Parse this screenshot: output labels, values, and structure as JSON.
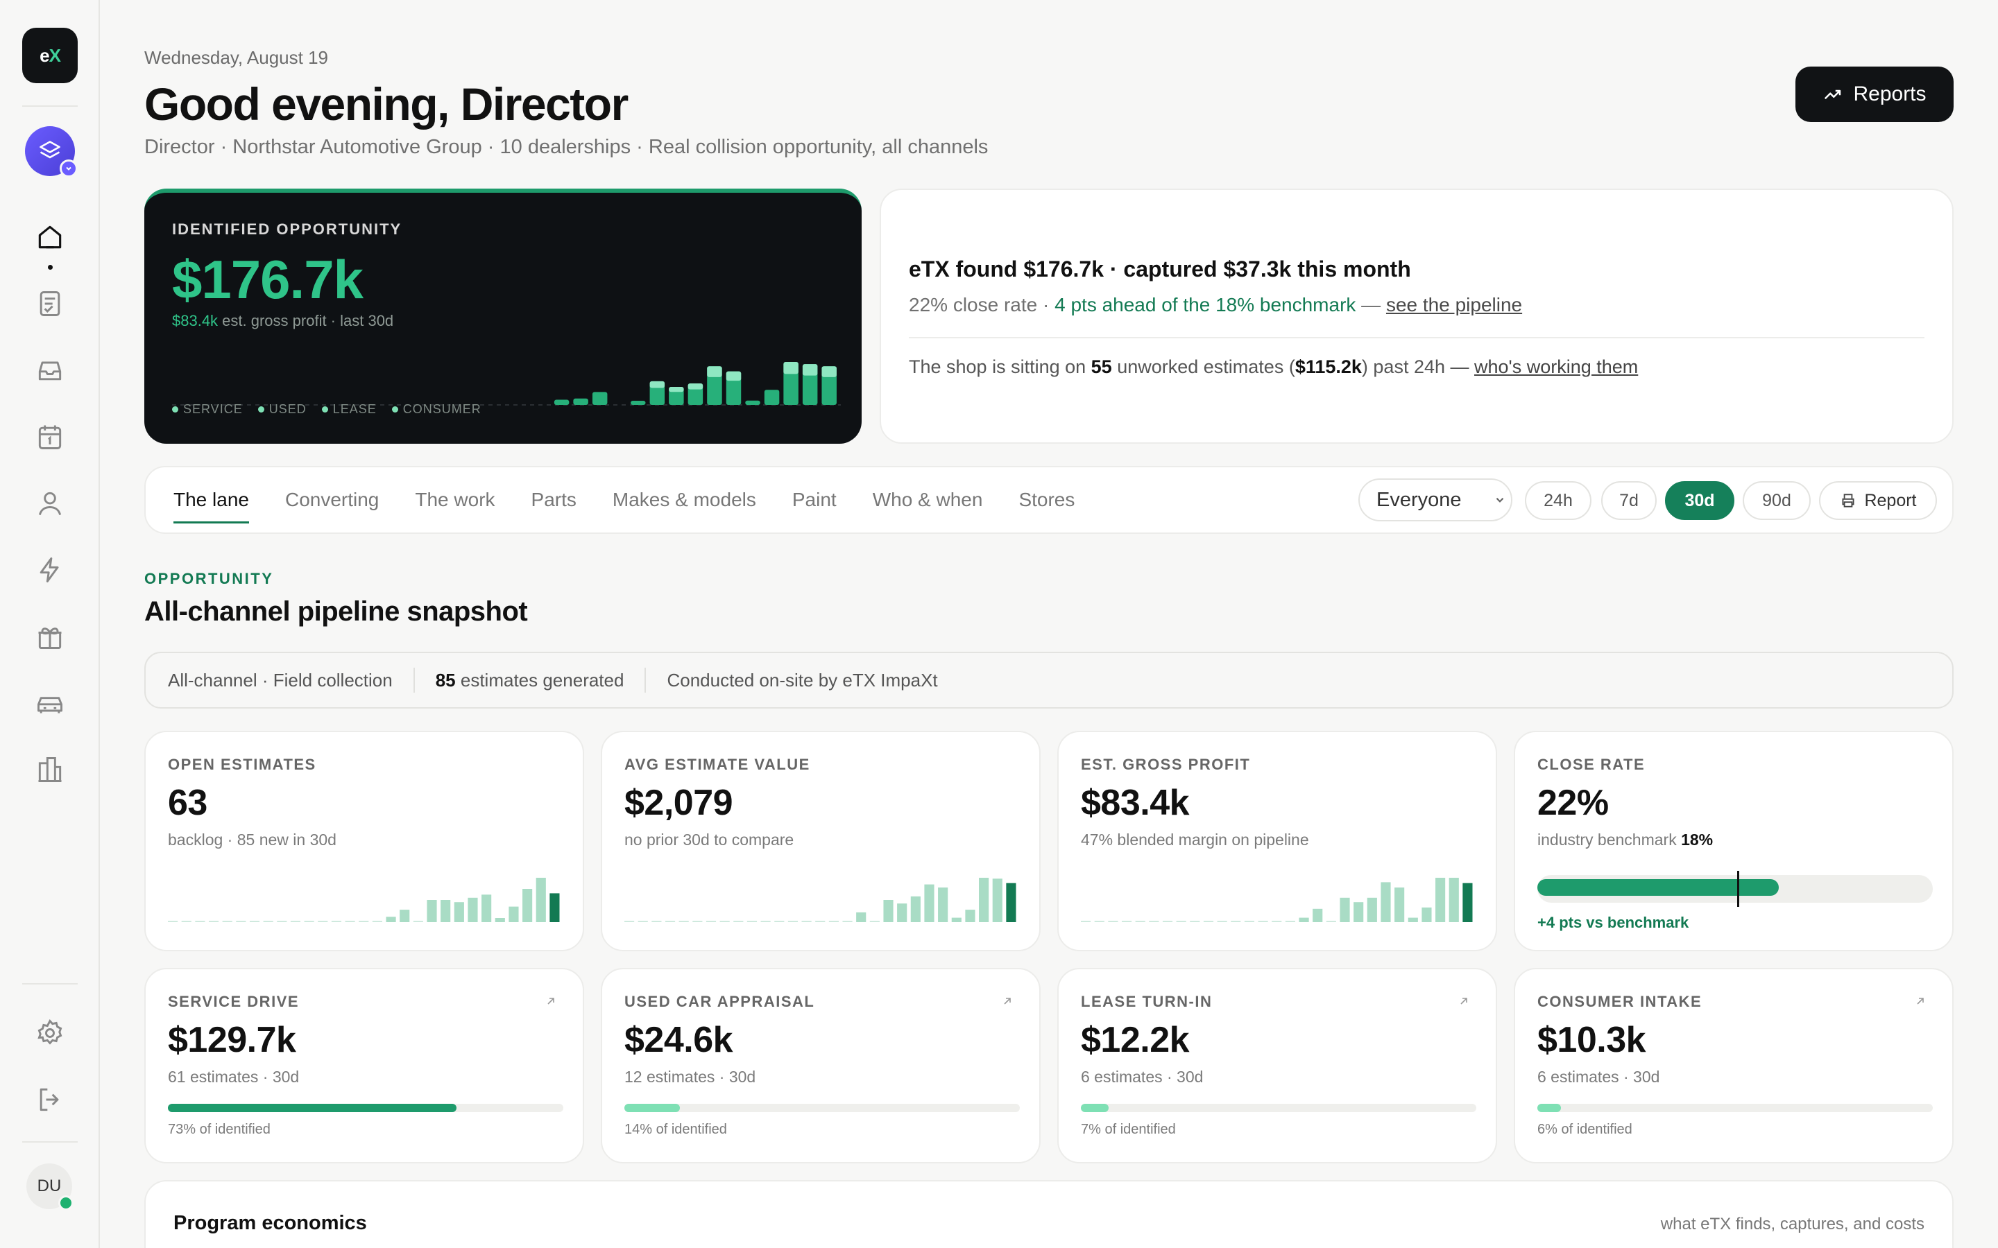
{
  "sidebar": {
    "logo_text": "eX",
    "nav": [
      {
        "name": "home-icon",
        "active": true
      },
      {
        "name": "estimates-icon"
      },
      {
        "name": "inbox-icon"
      },
      {
        "name": "calendar-icon"
      },
      {
        "name": "user-icon"
      },
      {
        "name": "lightning-icon"
      },
      {
        "name": "gift-icon"
      },
      {
        "name": "car-icon"
      },
      {
        "name": "buildings-icon"
      }
    ],
    "bottom": [
      {
        "name": "settings-icon"
      },
      {
        "name": "logout-icon"
      }
    ],
    "avatar_initials": "DU"
  },
  "header": {
    "date": "Wednesday, August 19",
    "greeting": "Good evening, Director",
    "subline": "Director · Northstar Automotive Group · 10 dealerships · Real collision opportunity, all channels",
    "reports_label": "Reports"
  },
  "hero": {
    "label": "IDENTIFIED OPPORTUNITY",
    "value": "$176.7k",
    "sub_value": "$83.4k",
    "sub_rest": " est. gross profit · last 30d",
    "legend": [
      "SERVICE",
      "USED",
      "LEASE",
      "CONSUMER"
    ],
    "bars": [
      0,
      0,
      0,
      0,
      0,
      0,
      0,
      0,
      0,
      0,
      0,
      0,
      0,
      0,
      0,
      0,
      0,
      0,
      0,
      0,
      0.12,
      0.15,
      0.3,
      0,
      0.08,
      0.55,
      0.42,
      0.5,
      0.9,
      0.78,
      0.1,
      0.35,
      1.0,
      0.95,
      0.9
    ],
    "colors": {
      "bar": "#27b07a",
      "bar_top": "#8fe7c2"
    }
  },
  "summary": {
    "title": "eTX found $176.7k · captured $37.3k this month",
    "rate_prefix": "22% close rate · ",
    "rate_green": "4 pts ahead of the 18% benchmark",
    "rate_dash": " — ",
    "rate_link": "see the pipeline",
    "line_pre": "The shop is sitting on ",
    "line_count": "55",
    "line_mid": " unworked estimates (",
    "line_amount": "$115.2k",
    "line_post": ") past 24h — ",
    "line_link": "who's working them"
  },
  "tabs": {
    "items": [
      "The lane",
      "Converting",
      "The work",
      "Parts",
      "Makes & models",
      "Paint",
      "Who & when",
      "Stores"
    ],
    "active": "The lane",
    "filter_value": "Everyone",
    "ranges": [
      "24h",
      "7d",
      "30d",
      "90d"
    ],
    "active_range": "30d",
    "report_label": "Report"
  },
  "section": {
    "kicker": "OPPORTUNITY",
    "title": "All-channel pipeline snapshot",
    "info_1": "All-channel · Field collection",
    "info_2_num": "85",
    "info_2_rest": " estimates generated",
    "info_3": "Conducted on-site by eTX ImpaXt"
  },
  "metrics": [
    {
      "label": "OPEN ESTIMATES",
      "value": "63",
      "note": "backlog · 85 new in 30d",
      "spark": [
        0,
        0,
        0,
        0,
        0,
        0,
        0,
        0,
        0,
        0,
        0,
        0,
        0,
        0,
        0,
        0,
        0.12,
        0.28,
        0,
        0.5,
        0.5,
        0.45,
        0.55,
        0.62,
        0.08,
        0.35,
        0.75,
        1.0,
        0.65
      ]
    },
    {
      "label": "AVG ESTIMATE VALUE",
      "value": "$2,079",
      "note": "no prior 30d to compare",
      "spark": [
        0,
        0,
        0,
        0,
        0,
        0,
        0,
        0,
        0,
        0,
        0,
        0,
        0,
        0,
        0,
        0,
        0,
        0.22,
        0,
        0.5,
        0.42,
        0.58,
        0.85,
        0.78,
        0.1,
        0.28,
        1.0,
        0.98,
        0.88
      ]
    },
    {
      "label": "EST. GROSS PROFIT",
      "value": "$83.4k",
      "note": "47% blended margin on pipeline",
      "spark": [
        0,
        0,
        0,
        0,
        0,
        0,
        0,
        0,
        0,
        0,
        0,
        0,
        0,
        0,
        0,
        0,
        0.1,
        0.3,
        0,
        0.55,
        0.45,
        0.55,
        0.9,
        0.78,
        0.1,
        0.33,
        1.0,
        1.0,
        0.88
      ]
    },
    {
      "label": "CLOSE RATE",
      "value": "22%",
      "note_pre": "industry benchmark ",
      "note_bold": "18%",
      "rate": 0.61,
      "benchmark": 0.505,
      "delta": "+4 pts vs benchmark"
    }
  ],
  "channels": [
    {
      "label": "SERVICE DRIVE",
      "value": "$129.7k",
      "note": "61 estimates · 30d",
      "share": 0.73,
      "share_label": "73% of identified"
    },
    {
      "label": "USED CAR APPRAISAL",
      "value": "$24.6k",
      "note": "12 estimates · 30d",
      "share": 0.14,
      "share_label": "14% of identified"
    },
    {
      "label": "LEASE TURN-IN",
      "value": "$12.2k",
      "note": "6 estimates · 30d",
      "share": 0.07,
      "share_label": "7% of identified"
    },
    {
      "label": "CONSUMER INTAKE",
      "value": "$10.3k",
      "note": "6 estimates · 30d",
      "share": 0.06,
      "share_label": "6% of identified"
    }
  ],
  "economics": {
    "title": "Program economics",
    "subtitle": "what eTX finds, captures, and costs"
  }
}
